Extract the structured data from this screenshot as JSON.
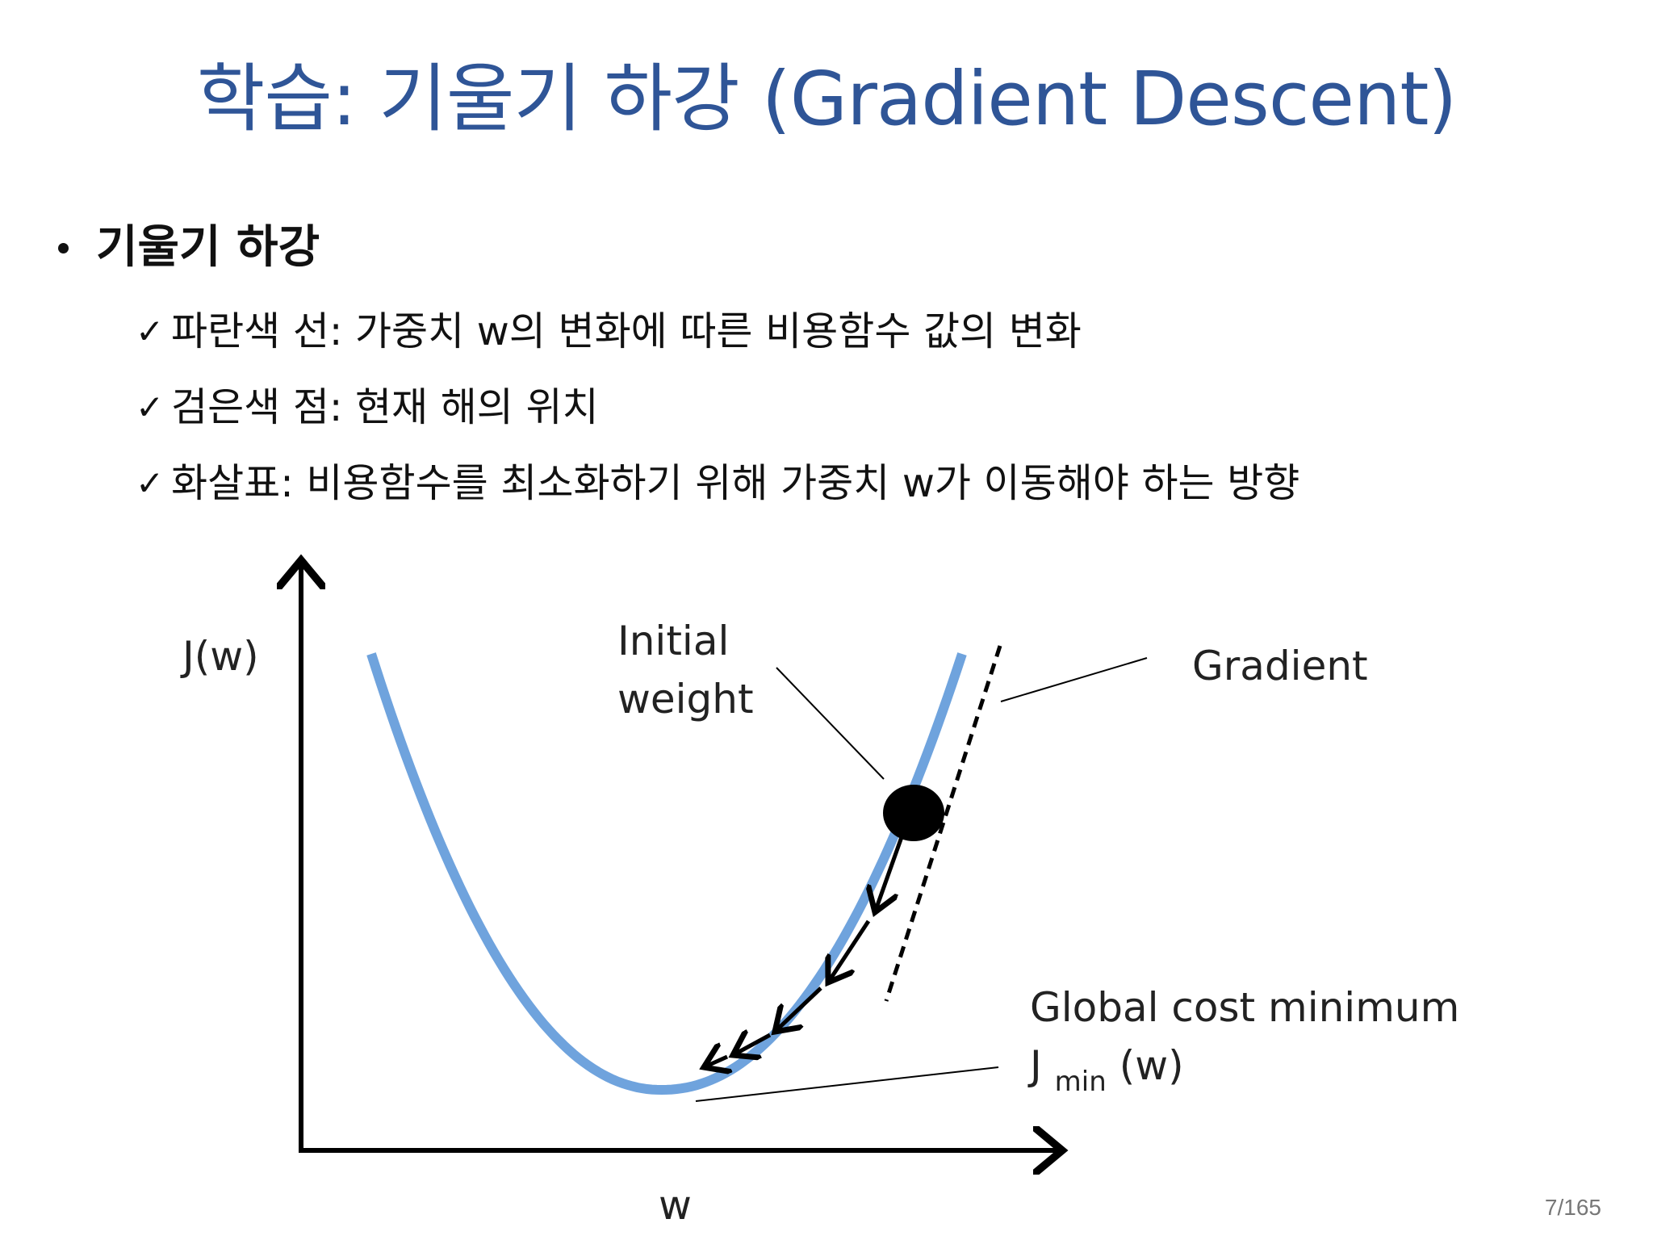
{
  "slide": {
    "title": "학습: 기울기 하강 (Gradient Descent)",
    "page_number": "7/165"
  },
  "bullets": {
    "main": "기울기 하강",
    "check_glyph": "✓",
    "items": [
      "파란색 선: 가중치 w의 변화에 따른 비용함수 값의 변화",
      "검은색 점: 현재 해의 위치",
      "화살표: 비용함수를 최소화하기 위해 가중치 w가 이동해야 하는 방향"
    ]
  },
  "figure": {
    "y_axis_label": "J(w)",
    "x_axis_label": "w",
    "initial_weight_line1": "Initial",
    "initial_weight_line2": "weight",
    "gradient_label": "Gradient",
    "global_min_label": "Global cost minimum",
    "jmin_J": "J",
    "jmin_sub": "min",
    "jmin_w": "(w)",
    "colors": {
      "curve": "#6fa3dd",
      "point": "#000000",
      "title": "#2f5597"
    }
  }
}
